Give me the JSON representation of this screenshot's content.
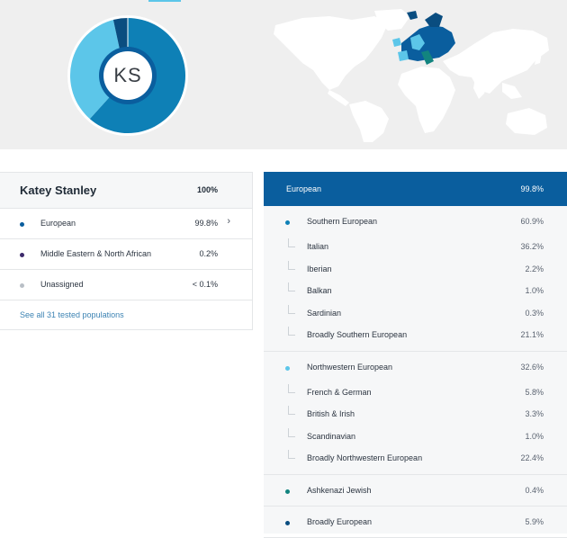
{
  "profile": {
    "initials": "KS",
    "name": "Katey Stanley",
    "total": "100%"
  },
  "colors": {
    "header_blue": "#0a5e9e",
    "european_dot": "#0a5e9e",
    "mena_dot": "#3d2a6b",
    "unassigned_dot": "#b9bfc6",
    "southern_dot": "#0e80b6",
    "northwestern_dot": "#5cc6e9",
    "ashkenazi_dot": "#12847f",
    "broadly_dot": "#0a4d80",
    "link": "#3c83b3"
  },
  "summary": {
    "rows": [
      {
        "label": "European",
        "pct": "99.8%",
        "dot": "#0a5e9e",
        "chevron": "›"
      },
      {
        "label": "Middle Eastern & North African",
        "pct": "0.2%",
        "dot": "#3d2a6b"
      },
      {
        "label": "Unassigned",
        "pct": "< 0.1%",
        "dot": "#b9bfc6"
      }
    ],
    "link": "See all 31 tested populations"
  },
  "detail": {
    "header": {
      "label": "European",
      "pct": "99.8%"
    },
    "groups": [
      {
        "label": "Southern European",
        "pct": "60.9%",
        "dot": "#0e80b6",
        "subs": [
          {
            "label": "Italian",
            "pct": "36.2%"
          },
          {
            "label": "Iberian",
            "pct": "2.2%"
          },
          {
            "label": "Balkan",
            "pct": "1.0%"
          },
          {
            "label": "Sardinian",
            "pct": "0.3%"
          },
          {
            "label": "Broadly Southern European",
            "pct": "21.1%"
          }
        ]
      },
      {
        "label": "Northwestern European",
        "pct": "32.6%",
        "dot": "#5cc6e9",
        "subs": [
          {
            "label": "French & German",
            "pct": "5.8%"
          },
          {
            "label": "British & Irish",
            "pct": "3.3%"
          },
          {
            "label": "Scandinavian",
            "pct": "1.0%"
          },
          {
            "label": "Broadly Northwestern European",
            "pct": "22.4%"
          }
        ]
      },
      {
        "label": "Ashkenazi Jewish",
        "pct": "0.4%",
        "dot": "#12847f",
        "subs": []
      },
      {
        "label": "Broadly European",
        "pct": "5.9%",
        "dot": "#0a4d80",
        "subs": []
      }
    ]
  }
}
